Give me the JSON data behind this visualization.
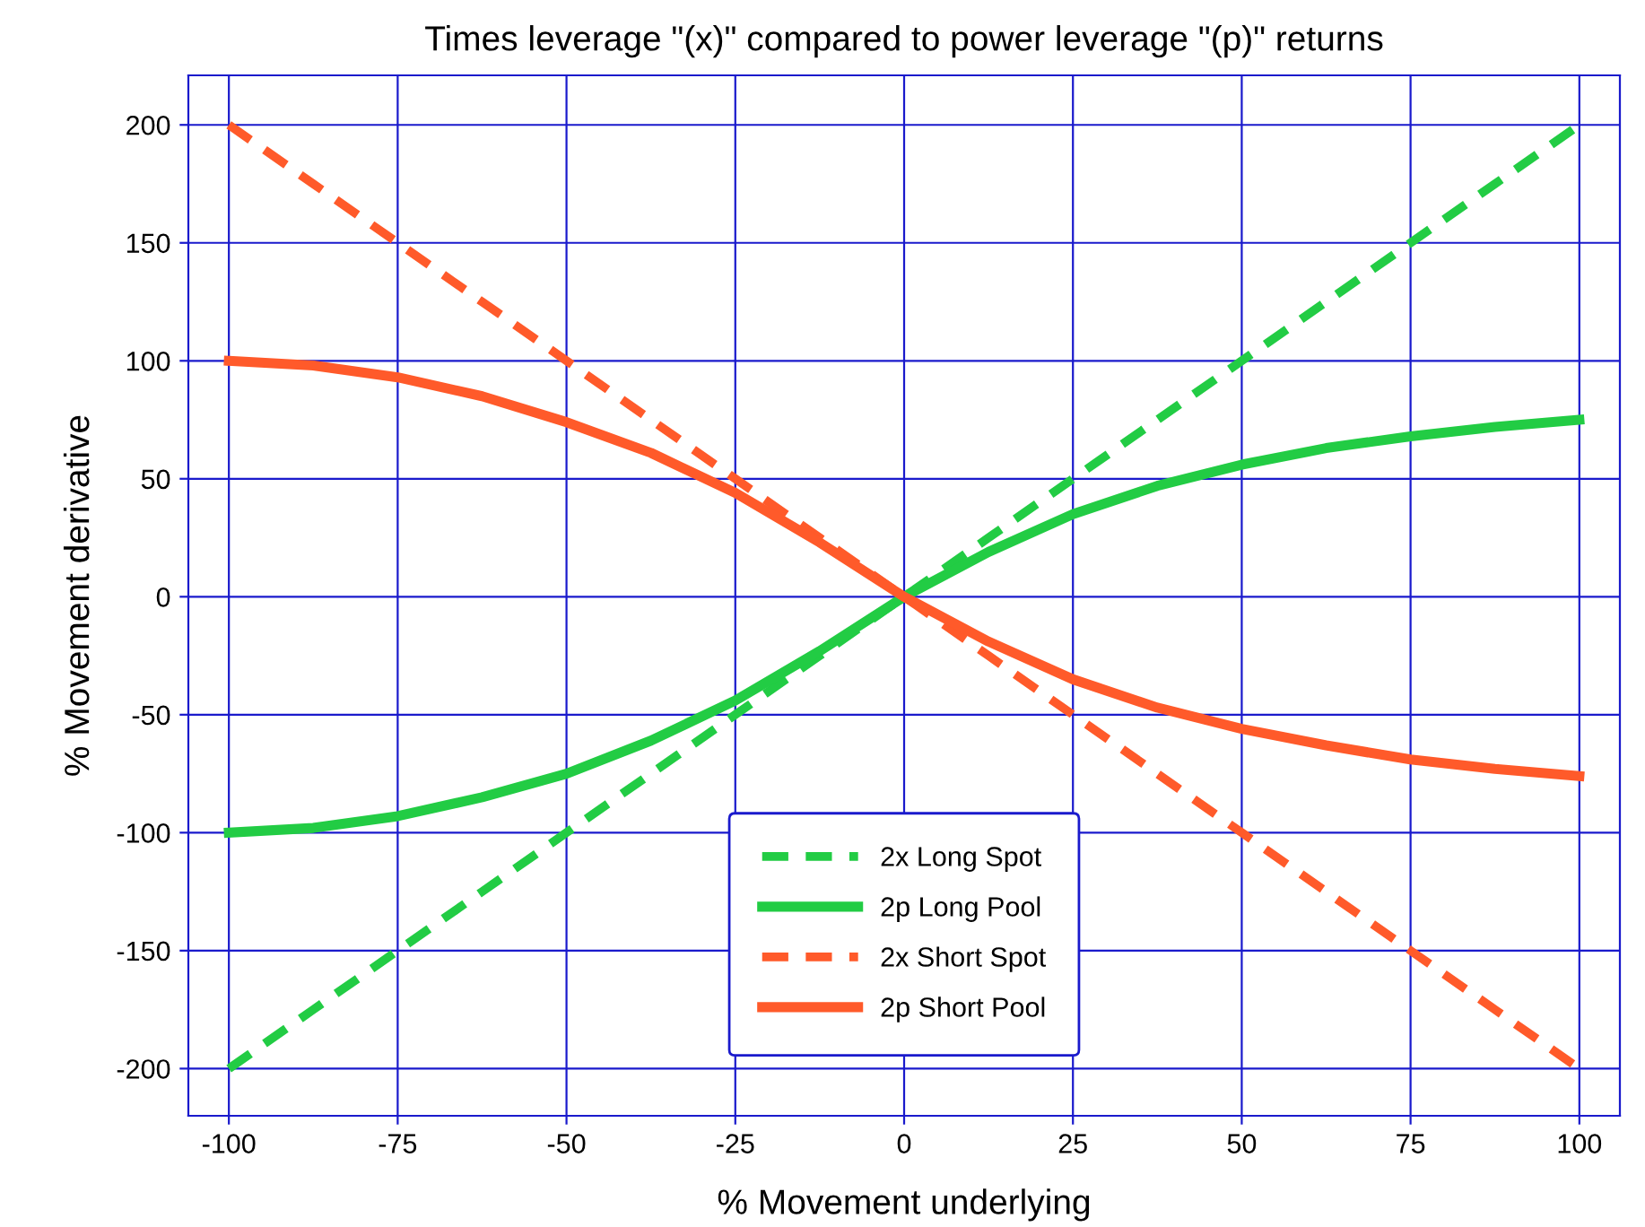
{
  "chart_data": {
    "type": "line",
    "title": "Times leverage \"(x)\" compared to power leverage \"(p)\" returns",
    "xlabel": "% Movement underlying",
    "ylabel": "% Movement derivative",
    "x": [
      -100,
      -87.5,
      -75,
      -62.5,
      -50,
      -37.5,
      -25,
      -12.5,
      0,
      12.5,
      25,
      37.5,
      50,
      62.5,
      75,
      87.5,
      100
    ],
    "series": [
      {
        "name": "2x Long Spot",
        "color": "#22cc44",
        "line_style": "dashed",
        "values": [
          -200,
          -175,
          -150,
          -125,
          -100,
          -75,
          -50,
          -25,
          0,
          25,
          50,
          75,
          100,
          125,
          150,
          175,
          200
        ]
      },
      {
        "name": "2p Long Pool",
        "color": "#22cc44",
        "line_style": "solid",
        "values": [
          -100,
          -98,
          -93,
          -85,
          -75,
          -61,
          -44,
          -23,
          0,
          19,
          35,
          47,
          56,
          63,
          68,
          72,
          75
        ]
      },
      {
        "name": "2x Short Spot",
        "color": "#ff5a2a",
        "line_style": "dashed",
        "values": [
          200,
          175,
          150,
          125,
          100,
          75,
          50,
          25,
          0,
          -25,
          -50,
          -75,
          -100,
          -125,
          -150,
          -175,
          -200
        ]
      },
      {
        "name": "2p Short Pool",
        "color": "#ff5a2a",
        "line_style": "solid",
        "values": [
          100,
          98,
          93,
          85,
          74,
          61,
          44,
          23,
          0,
          -19,
          -35,
          -47,
          -56,
          -63,
          -69,
          -73,
          -76
        ]
      }
    ],
    "xlim": [
      -106,
      106
    ],
    "ylim": [
      -220,
      221
    ],
    "xticks": [
      -100,
      -75,
      -50,
      -25,
      0,
      25,
      50,
      75,
      100
    ],
    "yticks": [
      -200,
      -150,
      -100,
      -50,
      0,
      50,
      100,
      150,
      200
    ],
    "grid": true,
    "legend": "bottom",
    "marker": "none"
  }
}
